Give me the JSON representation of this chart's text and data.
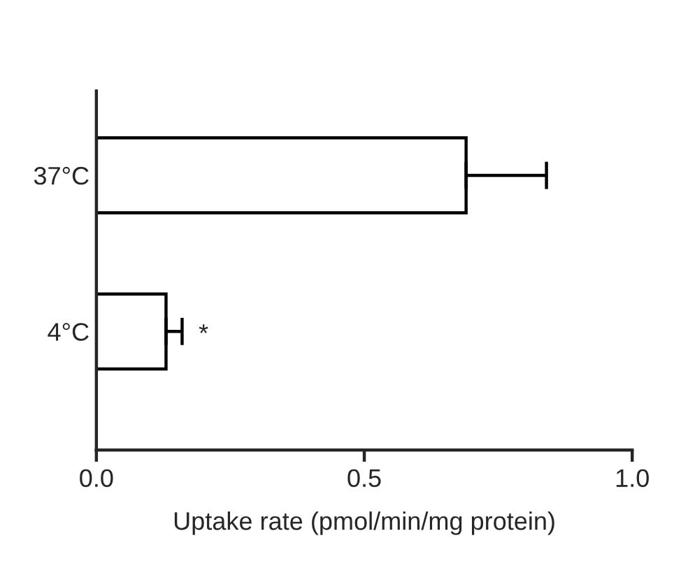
{
  "chart_data": {
    "type": "bar",
    "orientation": "horizontal",
    "xlabel": "Uptake rate (pmol/min/mg protein)",
    "categories": [
      "37°C",
      "4°C"
    ],
    "values": [
      0.69,
      0.13
    ],
    "errors": [
      [
        0.69,
        0.84
      ],
      [
        0.13,
        0.16
      ]
    ],
    "color": "#ffffff",
    "xlim": [
      0,
      1
    ],
    "xticks": [
      {
        "value": 0,
        "label": "0.0"
      },
      {
        "value": 0.5,
        "label": "0.5"
      },
      {
        "value": 1,
        "label": "1.0"
      }
    ],
    "annotations": [
      "*"
    ],
    "grid": false,
    "legend": false
  }
}
